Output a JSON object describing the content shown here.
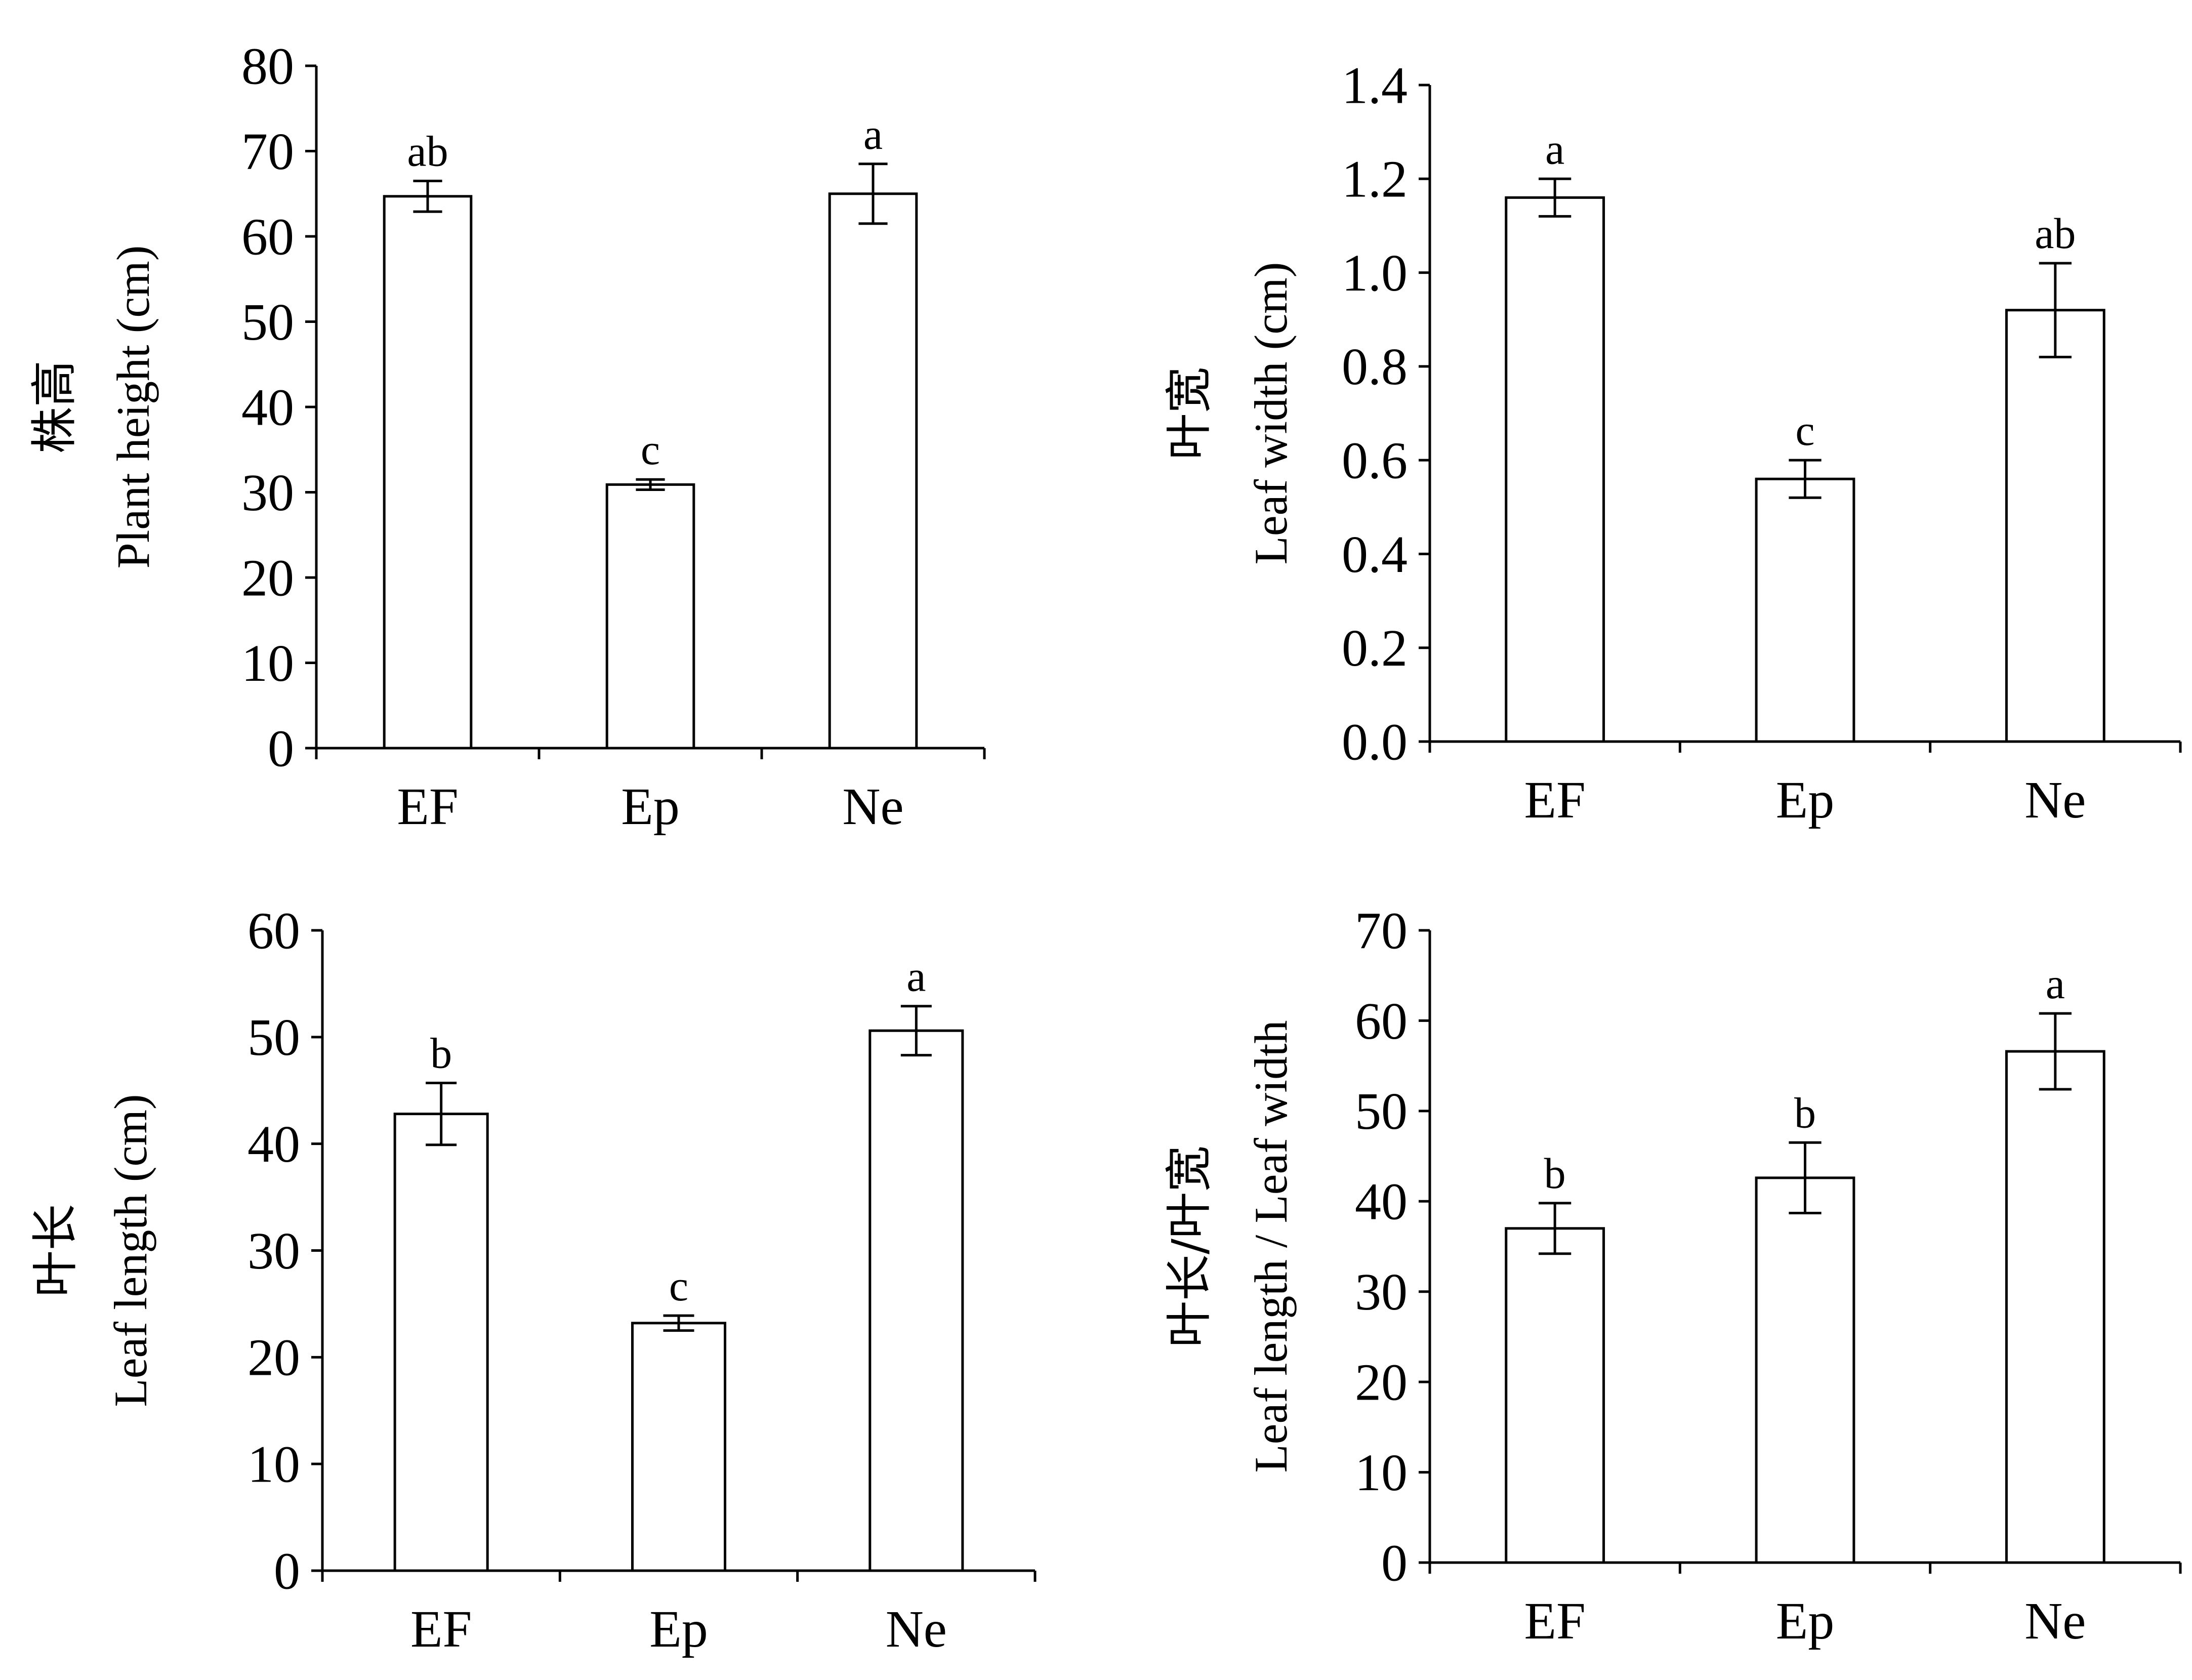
{
  "chart_data": [
    {
      "type": "bar",
      "categories": [
        "EF",
        "Ep",
        "Ne"
      ],
      "values": [
        64.7,
        30.9,
        65.0
      ],
      "errors": [
        1.8,
        0.6,
        3.5
      ],
      "significance_letters": [
        "ab",
        "c",
        "a"
      ],
      "ylabel_cn": "株高",
      "ylabel": "Plant height (cm)",
      "yticks": [
        "0",
        "10",
        "20",
        "30",
        "40",
        "50",
        "60",
        "70",
        "80"
      ],
      "ylim": [
        0,
        80
      ],
      "grid": false
    },
    {
      "type": "bar",
      "categories": [
        "EF",
        "Ep",
        "Ne"
      ],
      "values": [
        1.16,
        0.56,
        0.92
      ],
      "errors": [
        0.04,
        0.04,
        0.1
      ],
      "significance_letters": [
        "a",
        "c",
        "ab"
      ],
      "ylabel_cn": "叶宽",
      "ylabel": "Leaf width (cm)",
      "yticks": [
        "0.0",
        "0.2",
        "0.4",
        "0.6",
        "0.8",
        "1.0",
        "1.2",
        "1.4"
      ],
      "ylim": [
        0,
        1.4
      ],
      "grid": false
    },
    {
      "type": "bar",
      "categories": [
        "EF",
        "Ep",
        "Ne"
      ],
      "values": [
        42.8,
        23.2,
        50.6
      ],
      "errors": [
        2.9,
        0.7,
        2.3
      ],
      "significance_letters": [
        "b",
        "c",
        "a"
      ],
      "ylabel_cn": "叶长",
      "ylabel": "Leaf length (cm)",
      "yticks": [
        "0",
        "10",
        "20",
        "30",
        "40",
        "50",
        "60"
      ],
      "ylim": [
        0,
        60
      ],
      "grid": false
    },
    {
      "type": "bar",
      "categories": [
        "EF",
        "Ep",
        "Ne"
      ],
      "values": [
        37.0,
        42.6,
        56.6
      ],
      "errors": [
        2.8,
        3.9,
        4.2
      ],
      "significance_letters": [
        "b",
        "b",
        "a"
      ],
      "ylabel_cn": "叶长/叶宽",
      "ylabel": "Leaf length / Leaf width",
      "yticks": [
        "0",
        "10",
        "20",
        "30",
        "40",
        "50",
        "60",
        "70"
      ],
      "ylim": [
        0,
        70
      ],
      "grid": false
    }
  ]
}
